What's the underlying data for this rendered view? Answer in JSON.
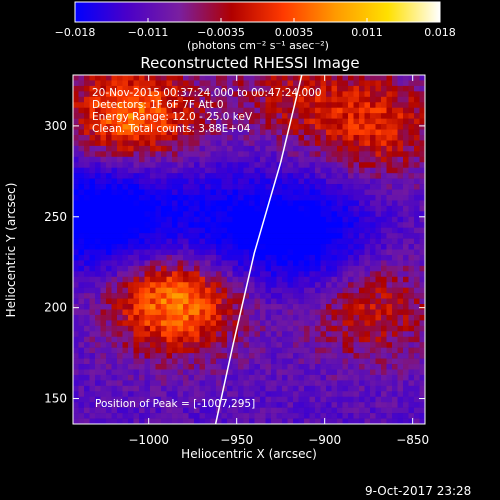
{
  "colorbar": {
    "ticks": [
      "-0.018",
      "-0.011",
      "-0.0035",
      "0.0035",
      "0.011",
      "0.018"
    ],
    "units": "(photons cm⁻² s⁻¹ asec⁻²)",
    "colors": [
      "#0000ff",
      "#4a00c8",
      "#7a1fa0",
      "#b00000",
      "#ff3a00",
      "#ff9a00",
      "#ffe000",
      "#ffffff"
    ]
  },
  "chart_data": {
    "type": "heatmap",
    "title": "Reconstructed RHESSI Image",
    "xlabel": "Heliocentric X (arcsec)",
    "ylabel": "Heliocentric Y (arcsec)",
    "xlim": [
      -1043,
      -843
    ],
    "ylim": [
      136,
      328
    ],
    "x_ticks": [
      -1000,
      -950,
      -900,
      -850
    ],
    "x_tick_labels": [
      "−1000",
      "−950",
      "−900",
      "−850"
    ],
    "y_ticks": [
      150,
      200,
      250,
      300
    ],
    "y_tick_labels": [
      "150",
      "200",
      "250",
      "300"
    ],
    "info_lines": [
      "20-Nov-2015 00:37:24.000 to 00:47:24.000",
      "Detectors: 1F 6F 7F  Att 0",
      "Energy Range: 12.0 - 25.0 keV",
      "Clean.  Total counts: 3.88E+04"
    ],
    "peak_label": "Position of Peak = [-1007,295]",
    "peak": [
      -1007,
      295
    ],
    "limb_curve": [
      [
        -962,
        136
      ],
      [
        -952,
        180
      ],
      [
        -940,
        230
      ],
      [
        -925,
        280
      ],
      [
        -913,
        328
      ]
    ],
    "intensity_regions": [
      {
        "x": -985,
        "y": 205,
        "level": 1.0
      },
      {
        "x": -1010,
        "y": 305,
        "level": 0.9
      },
      {
        "x": -875,
        "y": 200,
        "level": 0.55
      },
      {
        "x": -870,
        "y": 300,
        "level": 0.6
      },
      {
        "x": -920,
        "y": 318,
        "level": 0.4
      },
      {
        "x": -1025,
        "y": 250,
        "level": -1.0
      },
      {
        "x": -910,
        "y": 240,
        "level": -0.8
      },
      {
        "x": -960,
        "y": 245,
        "level": -0.55
      }
    ]
  },
  "footer": {
    "timestamp": "9-Oct-2017 23:28"
  }
}
